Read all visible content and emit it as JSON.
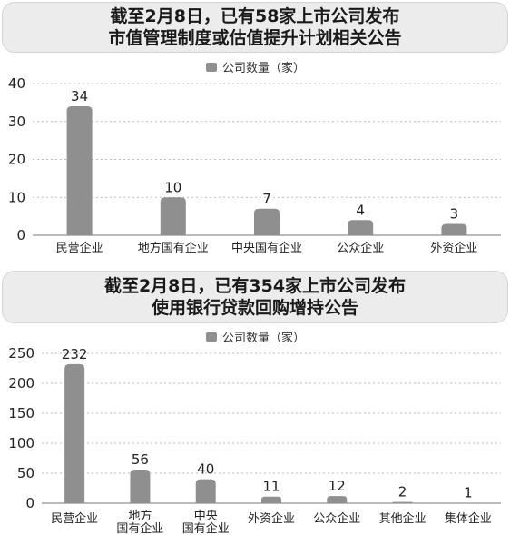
{
  "chart_data": [
    {
      "type": "bar",
      "title_lines": [
        "截至2月8日，已有58家上市公司发布",
        "市值管理制度或估值提升计划相关公告"
      ],
      "legend": "公司数量（家）",
      "legend_position": "top",
      "categories": [
        [
          "民营企业"
        ],
        [
          "地方国有企业"
        ],
        [
          "中央国有企业"
        ],
        [
          "公众企业"
        ],
        [
          "外资企业"
        ]
      ],
      "series": [
        {
          "name": "公司数量（家）",
          "values": [
            34,
            10,
            7,
            4,
            3
          ]
        }
      ],
      "ylim": [
        0,
        40
      ],
      "yticks": [
        0,
        10,
        20,
        30,
        40
      ],
      "grid": true,
      "bar_color": "#8f8f8f"
    },
    {
      "type": "bar",
      "title_lines": [
        "截至2月8日，已有354家上市公司发布",
        "使用银行贷款回购增持公告"
      ],
      "legend": "公司数量（家）",
      "legend_position": "top",
      "categories": [
        [
          "民营企业"
        ],
        [
          "地方",
          "国有企业"
        ],
        [
          "中央",
          "国有企业"
        ],
        [
          "外资企业"
        ],
        [
          "公众企业"
        ],
        [
          "其他企业"
        ],
        [
          "集体企业"
        ]
      ],
      "series": [
        {
          "name": "公司数量（家）",
          "values": [
            232,
            56,
            40,
            11,
            12,
            2,
            1
          ]
        }
      ],
      "ylim": [
        0,
        250
      ],
      "yticks": [
        0,
        50,
        100,
        150,
        200,
        250
      ],
      "grid": true,
      "bar_color": "#8f8f8f"
    }
  ]
}
